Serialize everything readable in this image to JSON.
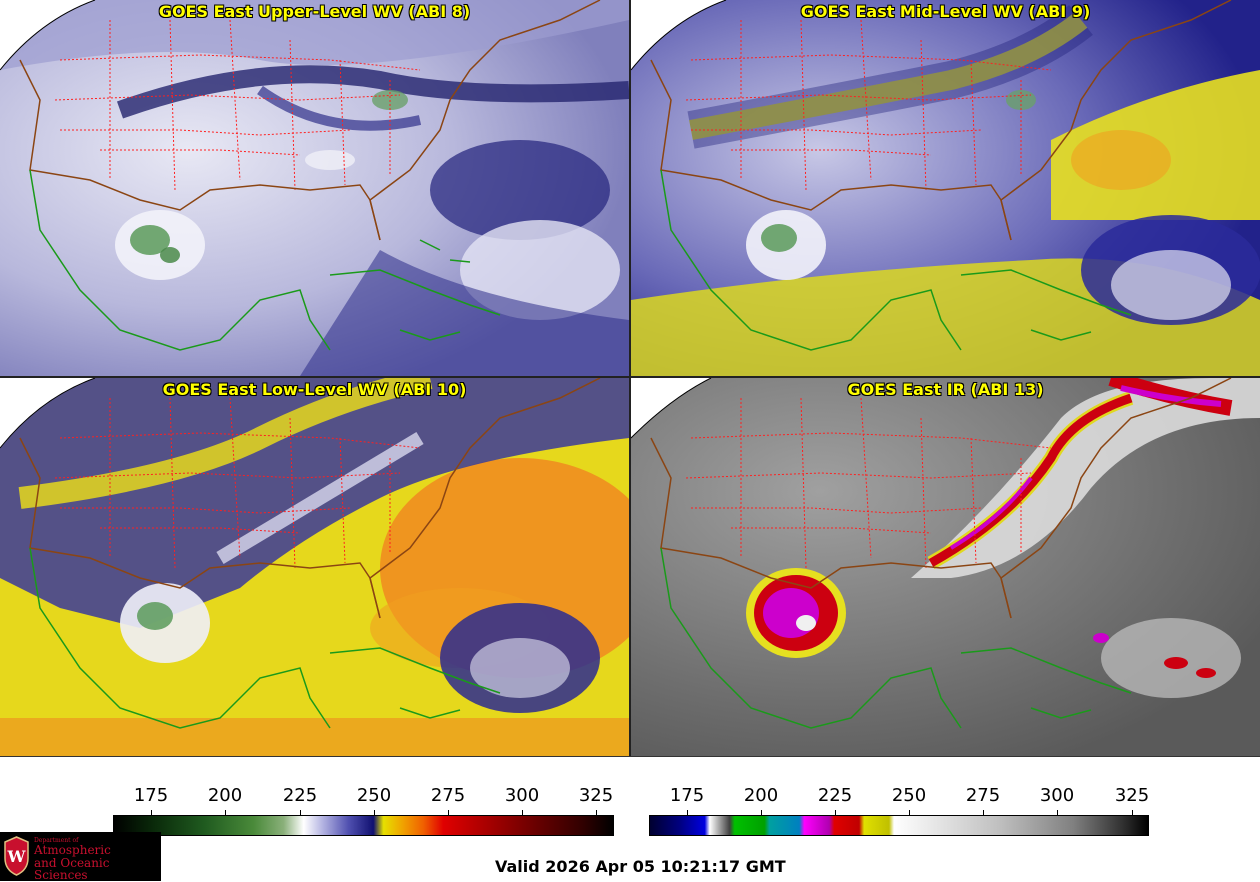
{
  "panels": {
    "p1": {
      "title": "GOES East Upper-Level WV (ABI 8)"
    },
    "p2": {
      "title": "GOES East Mid-Level WV (ABI 9)"
    },
    "p3": {
      "title": "GOES East Low-Level WV (ABI 10)"
    },
    "p4": {
      "title": "GOES East IR (ABI 13)"
    }
  },
  "colorbars": {
    "wv": {
      "ticks": [
        "175",
        "200",
        "225",
        "250",
        "275",
        "300",
        "325"
      ]
    },
    "ir": {
      "ticks": [
        "175",
        "200",
        "225",
        "250",
        "275",
        "300",
        "325"
      ]
    }
  },
  "footer": {
    "valid": "Valid 2026 Apr 05 10:21:17 GMT"
  },
  "logo": {
    "line1": "Department of",
    "line2": "Atmospheric",
    "line3": "and Oceanic Sciences",
    "shield_letter": "W"
  },
  "colors": {
    "title": "#ffff00",
    "state_borders": "#ff2020",
    "coast_us": "#8b4513",
    "coast_mex": "#1a9a1a"
  }
}
